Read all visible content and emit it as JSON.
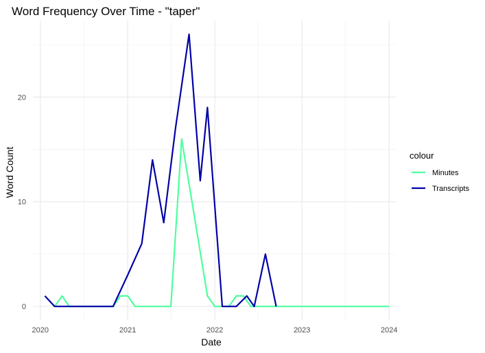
{
  "chart_data": {
    "type": "line",
    "title": "Word Frequency Over Time - \"taper\"",
    "xlabel": "Date",
    "ylabel": "Word Count",
    "xlim": [
      "2019-12-01",
      "2024-02-01"
    ],
    "ylim": [
      -1.3,
      27.3
    ],
    "x_ticks": [
      {
        "date": "2020-01-01",
        "label": "2020"
      },
      {
        "date": "2021-01-01",
        "label": "2021"
      },
      {
        "date": "2022-01-01",
        "label": "2022"
      },
      {
        "date": "2023-01-01",
        "label": "2023"
      },
      {
        "date": "2024-01-01",
        "label": "2024"
      }
    ],
    "x_minor_ticks": [
      "2020-07-01",
      "2021-07-01",
      "2022-07-01",
      "2023-07-01"
    ],
    "y_ticks": [
      0,
      10,
      20
    ],
    "y_minor_ticks": [
      5,
      15,
      25
    ],
    "grid": true,
    "legend": {
      "title": "colour",
      "position": "right"
    },
    "series": [
      {
        "name": "Minutes",
        "color": "#4dff9e",
        "points": [
          {
            "x": "2020-03-01",
            "y": 0
          },
          {
            "x": "2020-04-01",
            "y": 1
          },
          {
            "x": "2020-05-01",
            "y": 0
          },
          {
            "x": "2020-06-01",
            "y": 0
          },
          {
            "x": "2020-07-01",
            "y": 0
          },
          {
            "x": "2020-08-01",
            "y": 0
          },
          {
            "x": "2020-09-01",
            "y": 0
          },
          {
            "x": "2020-10-01",
            "y": 0
          },
          {
            "x": "2020-11-01",
            "y": 0
          },
          {
            "x": "2020-12-01",
            "y": 1
          },
          {
            "x": "2021-01-01",
            "y": 1
          },
          {
            "x": "2021-02-01",
            "y": 0
          },
          {
            "x": "2021-03-01",
            "y": 0
          },
          {
            "x": "2021-04-01",
            "y": 0
          },
          {
            "x": "2021-05-01",
            "y": 0
          },
          {
            "x": "2021-06-01",
            "y": 0
          },
          {
            "x": "2021-07-01",
            "y": 0
          },
          {
            "x": "2021-08-15",
            "y": 16
          },
          {
            "x": "2021-12-01",
            "y": 1
          },
          {
            "x": "2022-01-01",
            "y": 0
          },
          {
            "x": "2022-03-01",
            "y": 0
          },
          {
            "x": "2022-04-01",
            "y": 1
          },
          {
            "x": "2022-05-01",
            "y": 1
          },
          {
            "x": "2022-06-01",
            "y": 0
          },
          {
            "x": "2022-09-01",
            "y": 0
          },
          {
            "x": "2023-01-01",
            "y": 0
          },
          {
            "x": "2023-06-01",
            "y": 0
          },
          {
            "x": "2024-01-01",
            "y": 0
          }
        ]
      },
      {
        "name": "Transcripts",
        "color": "#0000a8",
        "points": [
          {
            "x": "2020-01-20",
            "y": 1
          },
          {
            "x": "2020-03-01",
            "y": 0
          },
          {
            "x": "2020-05-01",
            "y": 0
          },
          {
            "x": "2020-08-01",
            "y": 0
          },
          {
            "x": "2020-10-01",
            "y": 0
          },
          {
            "x": "2020-11-01",
            "y": 0
          },
          {
            "x": "2021-01-01",
            "y": 3
          },
          {
            "x": "2021-03-01",
            "y": 6
          },
          {
            "x": "2021-04-15",
            "y": 14
          },
          {
            "x": "2021-06-01",
            "y": 8
          },
          {
            "x": "2021-07-20",
            "y": 17
          },
          {
            "x": "2021-09-15",
            "y": 26
          },
          {
            "x": "2021-11-01",
            "y": 12
          },
          {
            "x": "2021-12-01",
            "y": 19
          },
          {
            "x": "2022-02-01",
            "y": 0
          },
          {
            "x": "2022-04-01",
            "y": 0
          },
          {
            "x": "2022-05-15",
            "y": 1
          },
          {
            "x": "2022-06-15",
            "y": 0
          },
          {
            "x": "2022-08-01",
            "y": 5
          },
          {
            "x": "2022-09-15",
            "y": 0
          }
        ]
      }
    ]
  }
}
